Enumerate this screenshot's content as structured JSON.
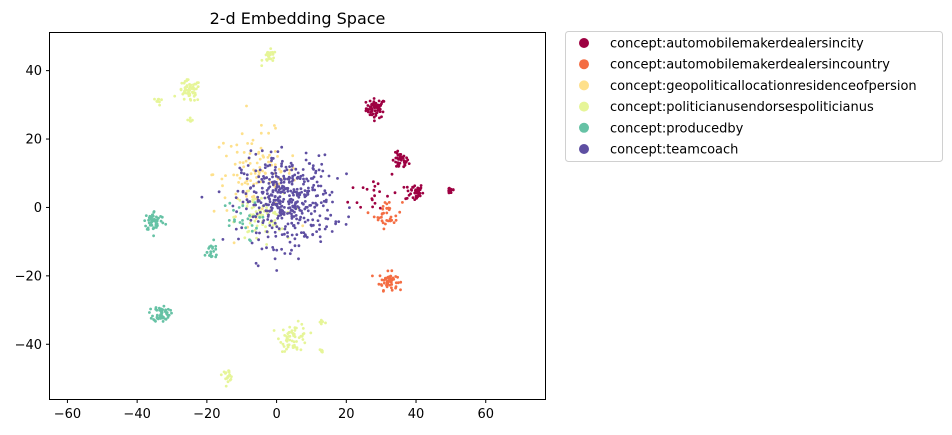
{
  "chart_data": {
    "type": "scatter",
    "title": "2-d Embedding Space",
    "xlabel": "",
    "ylabel": "",
    "xlim": [
      -65,
      77
    ],
    "ylim": [
      -56,
      51
    ],
    "xticks": [
      -60,
      -40,
      -20,
      0,
      20,
      40,
      60
    ],
    "yticks": [
      -40,
      -20,
      0,
      20,
      40
    ],
    "grid": false,
    "legend_position": "outside-upper-right",
    "series": [
      {
        "name": "concept:automobilemakerdealersincity",
        "color": "#9e0142",
        "clusters": [
          {
            "x": 28.5,
            "y": 29,
            "spread": 1.4,
            "n": 60
          },
          {
            "x": 35.5,
            "y": 13.5,
            "spread": 1.2,
            "n": 40
          },
          {
            "x": 39.5,
            "y": 4.5,
            "spread": 1.3,
            "n": 40
          },
          {
            "x": 50,
            "y": 5,
            "spread": 0.6,
            "n": 15
          },
          {
            "x": 28,
            "y": 4.5,
            "spread": 3.5,
            "n": 20
          }
        ]
      },
      {
        "name": "concept:automobilemakerdealersincountry",
        "color": "#f46d43",
        "clusters": [
          {
            "x": 32,
            "y": -21.5,
            "spread": 1.3,
            "n": 50
          },
          {
            "x": 32,
            "y": -2,
            "spread": 2.0,
            "n": 35
          }
        ]
      },
      {
        "name": "concept:geopoliticallocationresidenceofpersion",
        "color": "#fee08b",
        "clusters": [
          {
            "x": -6,
            "y": 10,
            "spread": 6.0,
            "n": 110
          }
        ]
      },
      {
        "name": "concept:politicianusendorsespoliticianus",
        "color": "#e6f598",
        "clusters": [
          {
            "x": -25,
            "y": 34,
            "spread": 1.6,
            "n": 55
          },
          {
            "x": -2,
            "y": 44,
            "spread": 1.0,
            "n": 25
          },
          {
            "x": 5,
            "y": -38,
            "spread": 2.0,
            "n": 60
          },
          {
            "x": -14,
            "y": -49,
            "spread": 0.8,
            "n": 20
          },
          {
            "x": -5,
            "y": -3,
            "spread": 3.5,
            "n": 70
          },
          {
            "x": -34,
            "y": 31,
            "spread": 0.6,
            "n": 8
          },
          {
            "x": 13,
            "y": -33.5,
            "spread": 0.6,
            "n": 8
          },
          {
            "x": 13,
            "y": -42,
            "spread": 0.5,
            "n": 6
          },
          {
            "x": -25,
            "y": 25.5,
            "spread": 0.5,
            "n": 6
          }
        ]
      },
      {
        "name": "concept:producedby",
        "color": "#66c2a5",
        "clusters": [
          {
            "x": -35,
            "y": -4,
            "spread": 1.5,
            "n": 55
          },
          {
            "x": -33,
            "y": -31,
            "spread": 1.2,
            "n": 55
          },
          {
            "x": -19,
            "y": -13,
            "spread": 1.5,
            "n": 20
          },
          {
            "x": -11,
            "y": -4,
            "spread": 3.0,
            "n": 25
          }
        ]
      },
      {
        "name": "concept:teamcoach",
        "color": "#5e4fa2",
        "clusters": [
          {
            "x": 3,
            "y": 2,
            "spread": 6.5,
            "n": 430
          }
        ]
      }
    ]
  }
}
